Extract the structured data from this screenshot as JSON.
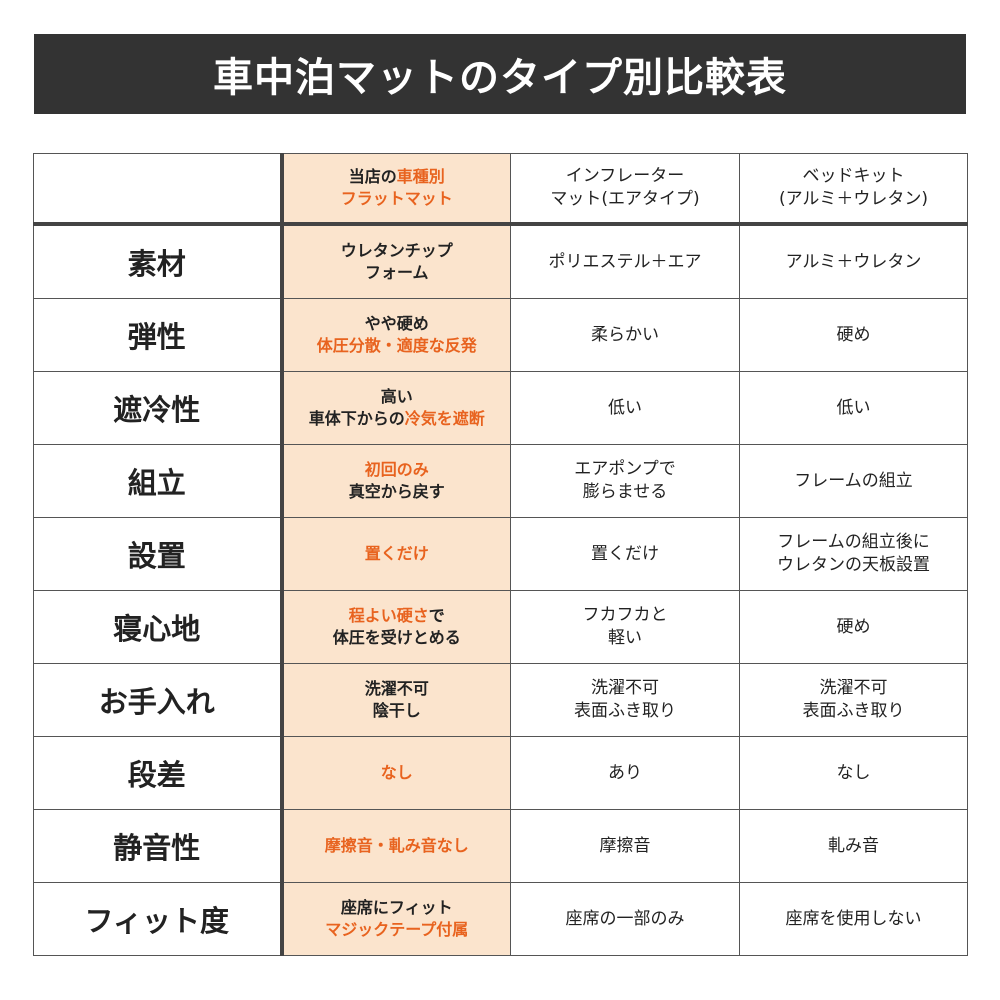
{
  "title": "車中泊マットのタイプ別比較表",
  "accent_color": "#e8631f",
  "highlight_bg": "#fbe4cd",
  "header": {
    "empty": "",
    "ours": [
      [
        {
          "t": "当店の",
          "hl": false
        },
        {
          "t": "車種別",
          "hl": true
        }
      ],
      [
        {
          "t": "フラットマット",
          "hl": true
        }
      ]
    ],
    "inflator": [
      "インフレーター",
      "マット(エアタイプ)"
    ],
    "bedkit": [
      "ベッドキット",
      "(アルミ＋ウレタン)"
    ]
  },
  "rows": [
    {
      "label": "素材",
      "ours": [
        [
          {
            "t": "ウレタンチップ",
            "hl": false
          }
        ],
        [
          {
            "t": "フォーム",
            "hl": false
          }
        ]
      ],
      "inflator": [
        "ポリエステル＋エア"
      ],
      "bedkit": [
        "アルミ＋ウレタン"
      ]
    },
    {
      "label": "弾性",
      "ours": [
        [
          {
            "t": "やや硬め",
            "hl": false
          }
        ],
        [
          {
            "t": "体圧分散・適度な反発",
            "hl": true
          }
        ]
      ],
      "inflator": [
        "柔らかい"
      ],
      "bedkit": [
        "硬め"
      ]
    },
    {
      "label": "遮冷性",
      "ours": [
        [
          {
            "t": "高い",
            "hl": false
          }
        ],
        [
          {
            "t": "車体下からの",
            "hl": false
          },
          {
            "t": "冷気を遮断",
            "hl": true
          }
        ]
      ],
      "inflator": [
        "低い"
      ],
      "bedkit": [
        "低い"
      ]
    },
    {
      "label": "組立",
      "ours": [
        [
          {
            "t": "初回のみ",
            "hl": true
          }
        ],
        [
          {
            "t": "真空から戻す",
            "hl": false
          }
        ]
      ],
      "inflator": [
        "エアポンプで",
        "膨らませる"
      ],
      "bedkit": [
        "フレームの組立"
      ]
    },
    {
      "label": "設置",
      "ours": [
        [
          {
            "t": "置くだけ",
            "hl": true
          }
        ]
      ],
      "inflator": [
        "置くだけ"
      ],
      "bedkit": [
        "フレームの組立後に",
        "ウレタンの天板設置"
      ]
    },
    {
      "label": "寝心地",
      "ours": [
        [
          {
            "t": "程よい硬さ",
            "hl": true
          },
          {
            "t": "で",
            "hl": false
          }
        ],
        [
          {
            "t": "体圧を受けとめる",
            "hl": false
          }
        ]
      ],
      "inflator": [
        "フカフカと",
        "軽い"
      ],
      "bedkit": [
        "硬め"
      ]
    },
    {
      "label": "お手入れ",
      "ours": [
        [
          {
            "t": "洗濯不可",
            "hl": false
          }
        ],
        [
          {
            "t": "陰干し",
            "hl": false
          }
        ]
      ],
      "inflator": [
        "洗濯不可",
        "表面ふき取り"
      ],
      "bedkit": [
        "洗濯不可",
        "表面ふき取り"
      ]
    },
    {
      "label": "段差",
      "ours": [
        [
          {
            "t": "なし",
            "hl": true
          }
        ]
      ],
      "inflator": [
        "あり"
      ],
      "bedkit": [
        "なし"
      ]
    },
    {
      "label": "静音性",
      "ours": [
        [
          {
            "t": "摩擦音・軋み音なし",
            "hl": true
          }
        ]
      ],
      "inflator": [
        "摩擦音"
      ],
      "bedkit": [
        "軋み音"
      ]
    },
    {
      "label": "フィット度",
      "ours": [
        [
          {
            "t": "座席にフィット",
            "hl": false
          }
        ],
        [
          {
            "t": "マジックテープ付属",
            "hl": true
          }
        ]
      ],
      "inflator": [
        "座席の一部のみ"
      ],
      "bedkit": [
        "座席を使用しない"
      ]
    }
  ]
}
